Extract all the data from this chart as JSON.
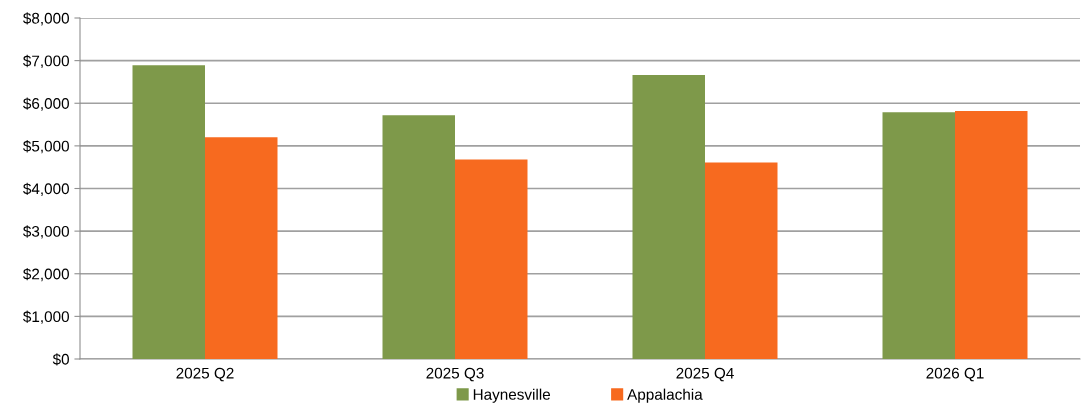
{
  "chart_data": {
    "type": "bar",
    "categories": [
      "2025 Q2",
      "2025 Q3",
      "2025 Q4",
      "2026 Q1"
    ],
    "series": [
      {
        "name": "Haynesville",
        "color": "#7e994a",
        "values": [
          6890,
          5720,
          6660,
          5790
        ]
      },
      {
        "name": "Appalachia",
        "color": "#f76a1f",
        "values": [
          5200,
          4680,
          4610,
          5820
        ]
      }
    ],
    "ylim": [
      0,
      8000
    ],
    "yticks": [
      {
        "value": 0,
        "label": "$0"
      },
      {
        "value": 1000,
        "label": "$1,000"
      },
      {
        "value": 2000,
        "label": "$2,000"
      },
      {
        "value": 3000,
        "label": "$3,000"
      },
      {
        "value": 4000,
        "label": "$4,000"
      },
      {
        "value": 5000,
        "label": "$5,000"
      },
      {
        "value": 6000,
        "label": "$6,000"
      },
      {
        "value": 7000,
        "label": "$7,000"
      },
      {
        "value": 8000,
        "label": "$8,000"
      }
    ],
    "grid": "y",
    "legend": "bottom"
  }
}
